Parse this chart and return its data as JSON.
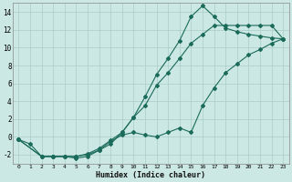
{
  "xlabel": "Humidex (Indice chaleur)",
  "background_color": "#cce8e4",
  "grid_color": "#aaccc8",
  "line_color": "#1a6b5a",
  "xlim_min": -0.5,
  "xlim_max": 23.5,
  "ylim_min": -3,
  "ylim_max": 15,
  "xticks": [
    0,
    1,
    2,
    3,
    4,
    5,
    6,
    7,
    8,
    9,
    10,
    11,
    12,
    13,
    14,
    15,
    16,
    17,
    18,
    19,
    20,
    21,
    22,
    23
  ],
  "yticks": [
    -2,
    0,
    2,
    4,
    6,
    8,
    10,
    12,
    14
  ],
  "line1_x": [
    0,
    1,
    2,
    3,
    4,
    5,
    6,
    7,
    8,
    9,
    10,
    11,
    12,
    13,
    14,
    15,
    16,
    17,
    18,
    19,
    20,
    21,
    22,
    23
  ],
  "line1_y": [
    -0.3,
    -0.8,
    -2.2,
    -2.2,
    -2.2,
    -2.4,
    -2.2,
    -1.5,
    -0.8,
    0.5,
    2.2,
    4.5,
    7.0,
    8.8,
    10.8,
    13.5,
    14.7,
    13.5,
    12.2,
    11.8,
    11.5,
    11.3,
    11.1,
    11.0
  ],
  "line2_x": [
    0,
    2,
    3,
    4,
    5,
    6,
    7,
    8,
    9,
    10,
    11,
    12,
    13,
    14,
    15,
    16,
    17,
    18,
    19,
    20,
    21,
    22,
    23
  ],
  "line2_y": [
    -0.3,
    -2.2,
    -2.2,
    -2.2,
    -2.2,
    -1.9,
    -1.3,
    -0.4,
    0.5,
    2.2,
    3.5,
    5.8,
    7.2,
    8.8,
    10.5,
    11.5,
    12.5,
    12.5,
    12.5,
    12.5,
    12.5,
    12.5,
    11.0
  ],
  "line3_x": [
    0,
    2,
    3,
    4,
    5,
    6,
    7,
    8,
    9,
    10,
    11,
    12,
    13,
    14,
    15,
    16,
    17,
    18,
    19,
    20,
    21,
    22,
    23
  ],
  "line3_y": [
    -0.3,
    -2.2,
    -2.2,
    -2.2,
    -2.2,
    -2.0,
    -1.5,
    -0.5,
    0.2,
    0.5,
    0.2,
    0.0,
    0.5,
    1.0,
    0.5,
    3.5,
    5.5,
    7.2,
    8.2,
    9.2,
    9.8,
    10.5,
    11.0
  ]
}
